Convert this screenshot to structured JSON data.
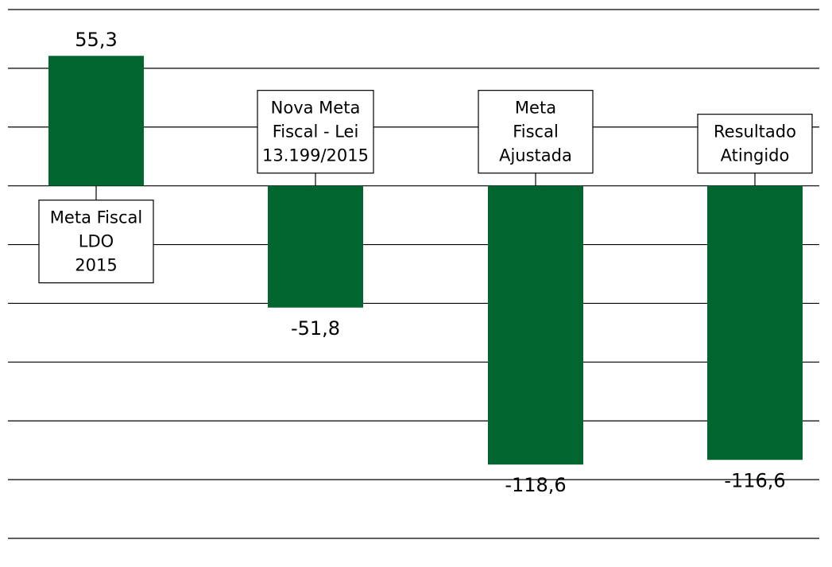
{
  "chart_data": {
    "type": "bar",
    "categories": [
      [
        "Meta Fiscal",
        "LDO",
        "2015"
      ],
      [
        "Nova Meta",
        "Fiscal - Lei",
        "13.199/2015"
      ],
      [
        "Meta",
        "Fiscal",
        "Ajustada"
      ],
      [
        "Resultado",
        "Atingido"
      ]
    ],
    "values": [
      55.3,
      -51.8,
      -118.6,
      -116.6
    ],
    "value_labels": [
      "55,3",
      "-51,8",
      "-118,6",
      "-116,6"
    ],
    "ylim": [
      -150,
      75
    ],
    "gridline_step": 25,
    "title": "",
    "xlabel": "",
    "ylabel": "",
    "bar_color": "#00652e",
    "grid": true,
    "legend": "none"
  }
}
